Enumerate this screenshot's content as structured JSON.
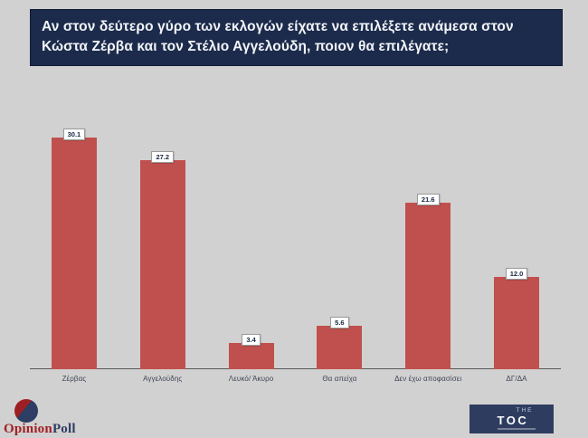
{
  "slide": {
    "question": "Αν στον δεύτερο γύρο των εκλογών είχατε να επιλέξετε ανάμεσα στον Κώστα Ζέρβα και τον Στέλιο Αγγελούδη, ποιον θα επιλέγατε;"
  },
  "chart_data": {
    "type": "bar",
    "title": "Αν στον δεύτερο γύρο των εκλογών είχατε να επιλέξετε ανάμεσα στον Κώστα Ζέρβα και τον Στέλιο Αγγελούδη, ποιον θα επιλέγατε;",
    "categories": [
      "Ζέρβας",
      "Αγγελούδης",
      "Λευκό/ Άκυρο",
      "Θα απείχα",
      "Δεν έχω αποφασίσει",
      "ΔΓ/ΔΑ"
    ],
    "values": [
      30.1,
      27.2,
      3.4,
      5.6,
      21.6,
      12.0
    ],
    "value_labels": [
      "30.1",
      "27.2",
      "3.4",
      "5.6",
      "21.6",
      "12.0"
    ],
    "xlabel": "",
    "ylabel": "",
    "ylim": [
      0,
      32
    ],
    "grid": false,
    "legend": false,
    "bar_color": "#c0504d",
    "label_box_bg": "#ffffff",
    "label_box_border": "#9a9a9a",
    "label_text_color": "#17253f"
  },
  "footer": {
    "opinionpoll": {
      "name_part1": "Opinion",
      "name_part2": "Poll",
      "circle_red": "#9e1f23",
      "circle_navy": "#2e3d63"
    },
    "toc": {
      "the": "THE",
      "toc": "TOC",
      "bg": "#2e3d5f"
    }
  },
  "colors": {
    "page_bg": "#d2d1d1",
    "header_bg": "#1c2b4b",
    "header_text": "#f2f4f8",
    "axis": "#595959",
    "category_text": "#3d4656"
  }
}
